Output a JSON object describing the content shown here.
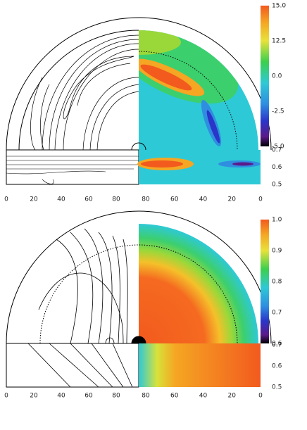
{
  "panels": [
    {
      "colorbar_labels": [
        "15.0",
        "12.5",
        "0.0",
        "-2.5",
        "-5.0"
      ],
      "strip_labels": [
        "0.7",
        "0.6",
        "0.5"
      ],
      "x_labels_left": [
        "0",
        "20",
        "40",
        "60",
        "80"
      ],
      "x_labels_right": [
        "80",
        "60",
        "40",
        "20",
        "0"
      ]
    },
    {
      "colorbar_labels": [
        "1.0",
        "0.9",
        "0.8",
        "0.7",
        "0.6"
      ],
      "strip_labels": [
        "0.7",
        "0.6",
        "0.5"
      ],
      "x_labels_left": [
        "0",
        "20",
        "40",
        "60",
        "80"
      ],
      "x_labels_right": [
        "80",
        "60",
        "40",
        "20",
        "0"
      ]
    }
  ]
}
